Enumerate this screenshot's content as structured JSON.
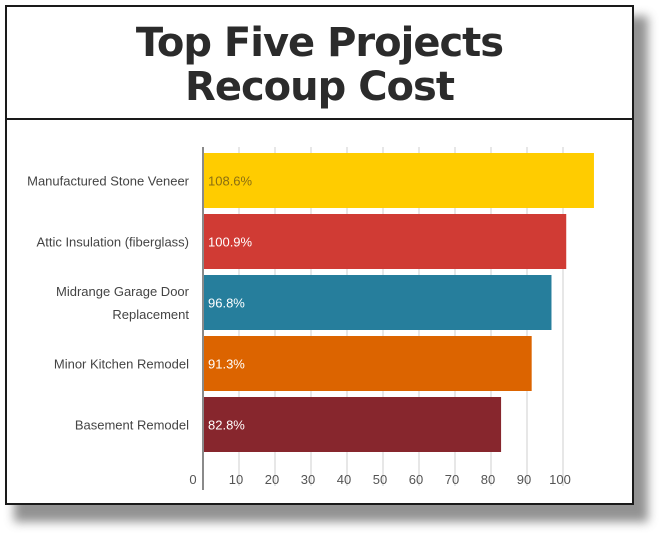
{
  "title_line1": "Top Five Projects",
  "title_line2": "Recoup Cost",
  "chart_data": {
    "type": "bar",
    "orientation": "horizontal",
    "title": "Top Five Projects Recoup Cost",
    "categories": [
      [
        "Manufactured Stone Veneer"
      ],
      [
        "Attic Insulation (fiberglass)"
      ],
      [
        "Midrange Garage Door",
        "Replacement"
      ],
      [
        "Minor Kitchen Remodel"
      ],
      [
        "Basement Remodel"
      ]
    ],
    "values": [
      108.6,
      100.9,
      96.8,
      91.3,
      82.8
    ],
    "value_labels": [
      "108.6%",
      "100.9%",
      "96.8%",
      "91.3%",
      "82.8%"
    ],
    "colors": [
      "#FFCC00",
      "#D03B34",
      "#267E9C",
      "#DC6400",
      "#87262D"
    ],
    "value_label_colors": [
      "#8A6E12",
      "#FFFFFF",
      "#FFFFFF",
      "#FFFFFF",
      "#FFFFFF"
    ],
    "xticks": [
      0,
      10,
      20,
      30,
      40,
      50,
      60,
      70,
      80,
      90,
      100
    ],
    "xlim": [
      0,
      110
    ],
    "grid": true,
    "xlabel": "",
    "ylabel": ""
  }
}
